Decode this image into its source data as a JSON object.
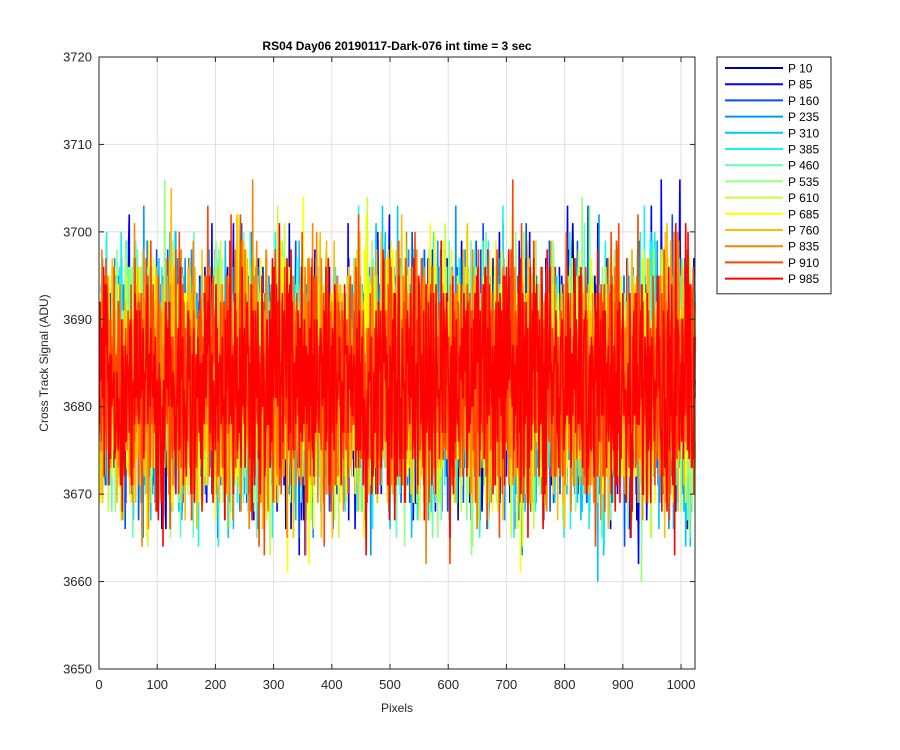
{
  "chart_data": {
    "type": "line",
    "title": "RS04 Day06 20190117-Dark-076 int time = 3 sec",
    "xlabel": "Pixels",
    "ylabel": "Cross Track Signal (ADU)",
    "xlim": [
      0,
      1024
    ],
    "ylim": [
      3650,
      3720
    ],
    "xticks": [
      0,
      100,
      200,
      300,
      400,
      500,
      600,
      700,
      800,
      900,
      1000
    ],
    "yticks": [
      3650,
      3660,
      3670,
      3680,
      3690,
      3700,
      3710,
      3720
    ],
    "grid": true,
    "legend_position": "outside-right",
    "x_range": [
      1,
      1024
    ],
    "signal_level": 3683,
    "noise_amplitude": 7,
    "series": [
      {
        "name": "P 10",
        "color": "#0000a8",
        "min": 3666,
        "max": 3706
      },
      {
        "name": "P 85",
        "color": "#0000ff",
        "min": 3658,
        "max": 3707
      },
      {
        "name": "P 160",
        "color": "#0050ff",
        "min": 3659,
        "max": 3710
      },
      {
        "name": "P 235",
        "color": "#0096ff",
        "min": 3658,
        "max": 3704
      },
      {
        "name": "P 310",
        "color": "#00c8ff",
        "min": 3657,
        "max": 3706
      },
      {
        "name": "P 385",
        "color": "#19f5e6",
        "min": 3663,
        "max": 3709
      },
      {
        "name": "P 460",
        "color": "#64ffb4",
        "min": 3665,
        "max": 3708
      },
      {
        "name": "P 535",
        "color": "#96ff7d",
        "min": 3658,
        "max": 3711
      },
      {
        "name": "P 610",
        "color": "#c8ff32",
        "min": 3655,
        "max": 3708
      },
      {
        "name": "P 685",
        "color": "#ffff00",
        "min": 3659,
        "max": 3705
      },
      {
        "name": "P 760",
        "color": "#ffbe00",
        "min": 3660,
        "max": 3709
      },
      {
        "name": "P 835",
        "color": "#ff8200",
        "min": 3657,
        "max": 3713
      },
      {
        "name": "P 910",
        "color": "#ff4600",
        "min": 3658,
        "max": 3710
      },
      {
        "name": "P 985",
        "color": "#ff0000",
        "min": 3663,
        "max": 3701
      }
    ]
  }
}
